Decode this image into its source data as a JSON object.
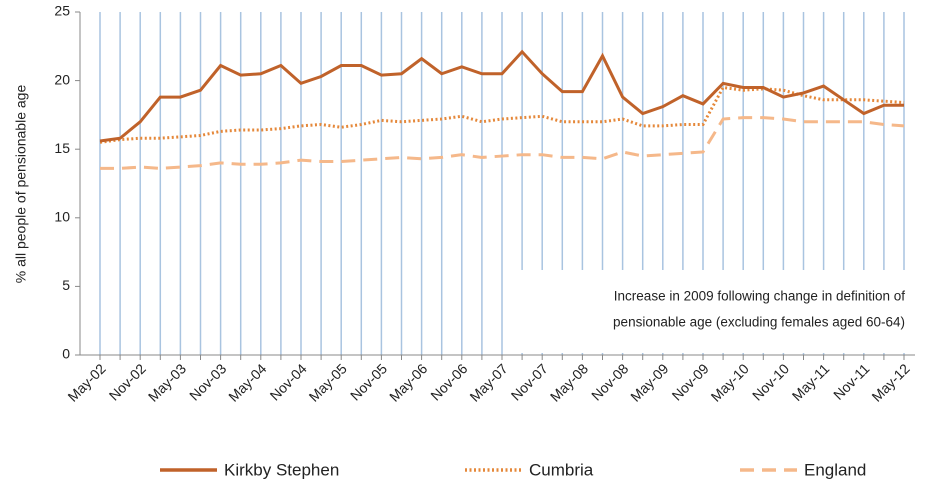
{
  "chart_data": {
    "type": "line",
    "y_label": "% all people of pensionable age",
    "categories": [
      "May-02",
      null,
      "Nov-02",
      null,
      "May-03",
      null,
      "Nov-03",
      null,
      "May-04",
      null,
      "Nov-04",
      null,
      "May-05",
      null,
      "Nov-05",
      null,
      "May-06",
      null,
      "Nov-06",
      null,
      "May-07",
      null,
      "Nov-07",
      null,
      "May-08",
      null,
      "Nov-08",
      null,
      "May-09",
      null,
      "Nov-09",
      null,
      "May-10",
      null,
      "Nov-10",
      null,
      "May-11",
      null,
      "Nov-11",
      null,
      "May-12"
    ],
    "series": [
      {
        "name": "Kirkby Stephen",
        "color": "#c0622a",
        "style": "solid",
        "values": [
          15.6,
          15.8,
          17.0,
          18.8,
          18.8,
          19.3,
          21.1,
          20.4,
          20.5,
          21.1,
          19.8,
          20.3,
          21.1,
          21.1,
          20.4,
          20.5,
          21.6,
          20.5,
          21.0,
          20.5,
          20.5,
          22.1,
          20.5,
          19.2,
          19.2,
          21.8,
          18.8,
          17.6,
          18.1,
          18.9,
          18.3,
          19.8,
          19.5,
          19.5,
          18.8,
          19.1,
          19.6,
          18.6,
          17.6,
          18.2,
          18.2
        ]
      },
      {
        "name": "Cumbria",
        "color": "#e5883a",
        "style": "dotted",
        "values": [
          15.5,
          15.7,
          15.8,
          15.8,
          15.9,
          16.0,
          16.3,
          16.4,
          16.4,
          16.5,
          16.7,
          16.8,
          16.6,
          16.8,
          17.1,
          17.0,
          17.1,
          17.2,
          17.4,
          17.0,
          17.2,
          17.3,
          17.4,
          17.0,
          17.0,
          17.0,
          17.2,
          16.7,
          16.7,
          16.8,
          16.8,
          19.5,
          19.3,
          19.4,
          19.3,
          18.9,
          18.6,
          18.6,
          18.6,
          18.5,
          18.4
        ]
      },
      {
        "name": "England",
        "color": "#f5b88a",
        "style": "dashed",
        "values": [
          13.6,
          13.6,
          13.7,
          13.6,
          13.7,
          13.8,
          14.0,
          13.9,
          13.9,
          14.0,
          14.2,
          14.1,
          14.1,
          14.2,
          14.3,
          14.4,
          14.3,
          14.4,
          14.6,
          14.4,
          14.5,
          14.6,
          14.6,
          14.4,
          14.4,
          14.3,
          14.8,
          14.5,
          14.6,
          14.7,
          14.8,
          17.2,
          17.3,
          17.3,
          17.2,
          17.0,
          17.0,
          17.0,
          17.0,
          16.8,
          16.7
        ]
      }
    ],
    "ylim": [
      0,
      25
    ],
    "yticks": [
      0,
      5,
      10,
      15,
      20,
      25
    ],
    "grid": "vertical",
    "grid_color": "#a9c4e0",
    "legend": "bottom",
    "annotations": [
      "Increase in 2009 following change in definition of",
      "pensionable age (excluding females aged 60-64)"
    ]
  }
}
